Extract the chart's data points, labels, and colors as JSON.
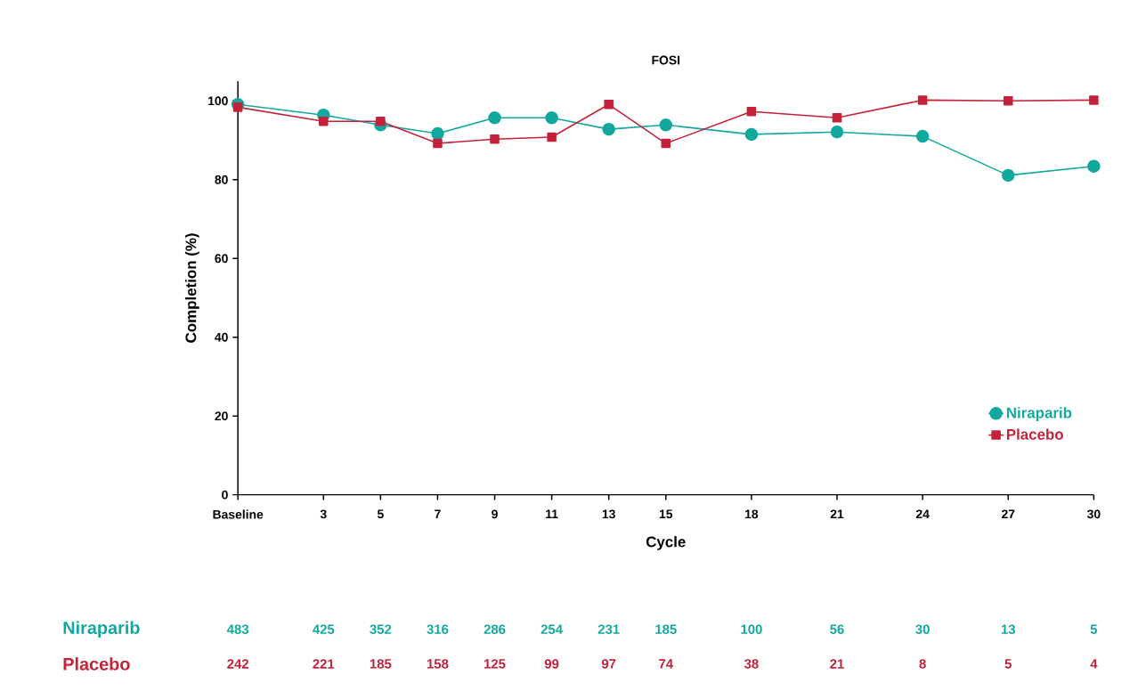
{
  "chart_data": {
    "type": "line",
    "title": "FOSI",
    "xlabel": "Cycle",
    "ylabel": "Completion (%)",
    "x": [
      0,
      3,
      5,
      7,
      9,
      11,
      13,
      15,
      18,
      21,
      24,
      27,
      30
    ],
    "series": [
      {
        "name": "Niraparib",
        "color": "#12a89d",
        "marker": "circle",
        "values": [
          99.1,
          96.4,
          93.9,
          91.7,
          95.7,
          95.7,
          92.8,
          93.9,
          91.5,
          92.1,
          91.0,
          81.1,
          83.4
        ]
      },
      {
        "name": "Placebo",
        "color": "#c4223a",
        "marker": "square",
        "values": [
          98.4,
          94.8,
          94.8,
          89.2,
          90.3,
          90.8,
          99.1,
          89.2,
          97.3,
          95.7,
          100.2,
          100.0,
          100.2
        ]
      }
    ],
    "xlim": [
      0,
      30
    ],
    "xticks": [
      {
        "value": 0,
        "label": "Baseline"
      },
      3,
      5,
      7,
      9,
      11,
      13,
      15,
      18,
      21,
      24,
      27,
      30
    ],
    "ylim": [
      0,
      105
    ],
    "yticks": [
      0,
      20,
      40,
      60,
      80,
      100
    ],
    "legend": "bottom right",
    "annotations": [
      "483",
      "425",
      "352",
      "316",
      "286",
      "254",
      "231",
      "185",
      "100",
      "56",
      "30",
      "13",
      "5",
      "242",
      "221",
      "185",
      "158",
      "125",
      "99",
      "97",
      "74",
      "38",
      "21",
      "8",
      "5",
      "4"
    ]
  }
}
